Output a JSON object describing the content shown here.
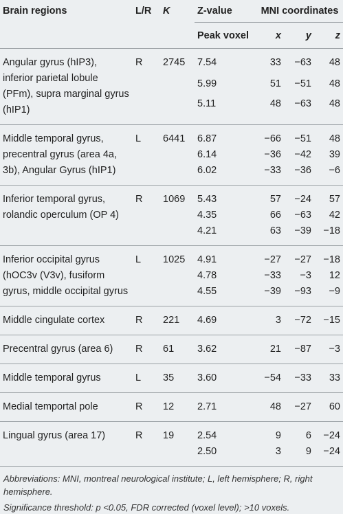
{
  "table": {
    "header": [
      "Brain regions",
      "L/R",
      "K",
      "Z-value",
      "MNI coordinates"
    ],
    "subheader": [
      "Peak voxel",
      "x",
      "y",
      "z"
    ],
    "groups": [
      {
        "region": "Angular gyrus (hIP3), inferior parietal lobule (PFm), supra marginal gyrus (hIP1)",
        "side": "R",
        "k": "2745",
        "peaks": [
          [
            "7.54",
            "33",
            "−63",
            "48"
          ],
          [
            "5.99",
            "51",
            "−51",
            "48"
          ],
          [
            "5.11",
            "48",
            "−63",
            "48"
          ]
        ]
      },
      {
        "region": "Middle temporal gyrus, precentral gyrus (area 4a, 3b), Angular Gyrus (hIP1)",
        "side": "L",
        "k": "6441",
        "peaks": [
          [
            "6.87",
            "−66",
            "−51",
            "48"
          ],
          [
            "6.14",
            "−36",
            "−42",
            "39"
          ],
          [
            "6.02",
            "−33",
            "−36",
            "−6"
          ]
        ]
      },
      {
        "region": "Inferior temporal gyrus, rolandic operculum (OP 4)",
        "side": "R",
        "k": "1069",
        "peaks": [
          [
            "5.43",
            "57",
            "−24",
            "57"
          ],
          [
            "4.35",
            "66",
            "−63",
            "42"
          ],
          [
            "4.21",
            "63",
            "−39",
            "−18"
          ]
        ]
      },
      {
        "region": "Inferior occipital gyrus (hOC3v (V3v), fusiform gyrus, middle occipital gyrus",
        "side": "L",
        "k": "1025",
        "peaks": [
          [
            "4.91",
            "−27",
            "−27",
            "−18"
          ],
          [
            "4.78",
            "−33",
            "−3",
            "12"
          ],
          [
            "4.55",
            "−39",
            "−93",
            "−9"
          ]
        ]
      },
      {
        "region": "Middle cingulate cortex",
        "side": "R",
        "k": "221",
        "peaks": [
          [
            "4.69",
            "3",
            "−72",
            "−15"
          ]
        ]
      },
      {
        "region": "Precentral gyrus (area 6)",
        "side": "R",
        "k": "61",
        "peaks": [
          [
            "3.62",
            "21",
            "−87",
            "−3"
          ]
        ]
      },
      {
        "region": "Middle temporal gyrus",
        "side": "L",
        "k": "35",
        "peaks": [
          [
            "3.60",
            "−54",
            "−33",
            "33"
          ]
        ]
      },
      {
        "region": "Medial temportal pole",
        "side": "R",
        "k": "12",
        "peaks": [
          [
            "2.71",
            "48",
            "−27",
            "60"
          ]
        ]
      },
      {
        "region": "Lingual gyrus (area 17)",
        "side": "R",
        "k": "19",
        "peaks": [
          [
            "2.54",
            "9",
            "6",
            "−24"
          ],
          [
            "2.50",
            "3",
            "9",
            "−24"
          ]
        ]
      }
    ],
    "footnotes": [
      "Abbreviations: MNI, montreal neurological institute; L, left hemisphere; R, right hemisphere.",
      "Significance threshold: p <0.05, FDR corrected (voxel level); >10 voxels."
    ]
  }
}
